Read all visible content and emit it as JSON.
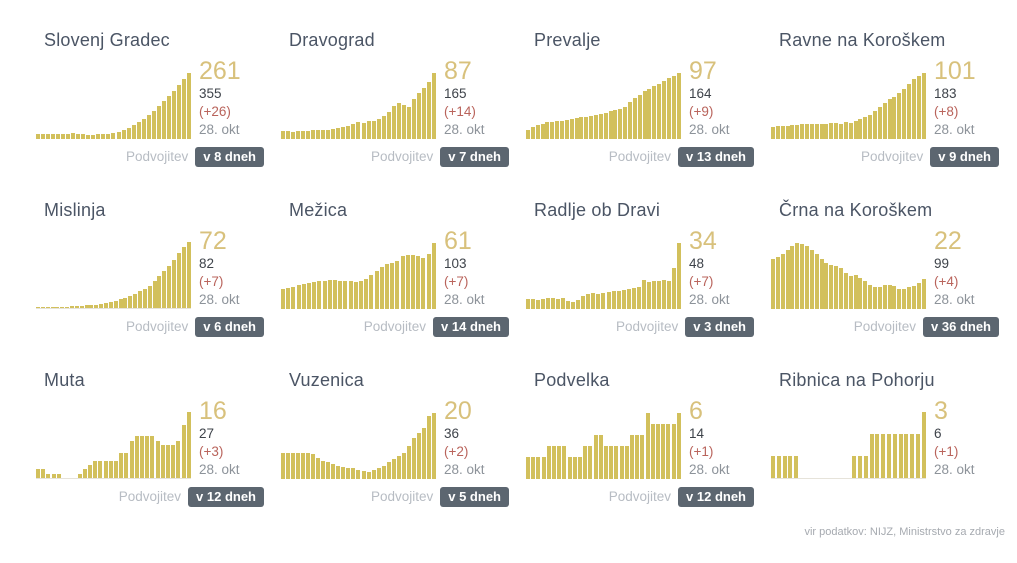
{
  "labels": {
    "doubling": "Podvojitev"
  },
  "footer": {
    "source": "vir podatkov: NIJZ, Ministrstvo za zdravje"
  },
  "colors": {
    "bar": "#d2c05c",
    "headline": "#d8c17c",
    "delta": "#b9635b",
    "badge_bg": "#5c6670",
    "title": "#4b5565"
  },
  "layout_hints": {
    "sparkline_small_multiples": true,
    "axes_hidden": true,
    "grid": false,
    "columns": 4,
    "rows": 3
  },
  "chart_data": [
    {
      "type": "bar",
      "title": "Slovenj Gradec",
      "headline_value": "261",
      "total": "355",
      "delta": "(+26)",
      "date": "28. okt",
      "doubling_time": "v 8 dneh",
      "values_pct_of_max": [
        8,
        8,
        7,
        8,
        8,
        8,
        7,
        9,
        8,
        7,
        6,
        6,
        7,
        7,
        8,
        9,
        11,
        14,
        17,
        21,
        26,
        31,
        37,
        43,
        50,
        57,
        65,
        73,
        82,
        91,
        100
      ]
    },
    {
      "type": "bar",
      "title": "Dravograd",
      "headline_value": "87",
      "total": "165",
      "delta": "(+14)",
      "date": "28. okt",
      "doubling_time": "v 7 dneh",
      "values_pct_of_max": [
        12,
        12,
        11,
        12,
        12,
        12,
        13,
        14,
        13,
        14,
        15,
        17,
        18,
        20,
        22,
        25,
        24,
        28,
        27,
        31,
        35,
        41,
        50,
        54,
        51,
        49,
        60,
        70,
        77,
        87,
        100
      ]
    },
    {
      "type": "bar",
      "title": "Prevalje",
      "headline_value": "97",
      "total": "164",
      "delta": "(+9)",
      "date": "28. okt",
      "doubling_time": "v 13 dneh",
      "values_pct_of_max": [
        14,
        18,
        21,
        23,
        25,
        26,
        27,
        28,
        29,
        31,
        32,
        33,
        34,
        35,
        37,
        38,
        40,
        42,
        44,
        46,
        49,
        56,
        62,
        67,
        72,
        76,
        80,
        84,
        88,
        92,
        96,
        100
      ]
    },
    {
      "type": "bar",
      "title": "Ravne na Koroškem",
      "headline_value": "101",
      "total": "183",
      "delta": "(+8)",
      "date": "28. okt",
      "doubling_time": "v 9 dneh",
      "values_pct_of_max": [
        18,
        19,
        20,
        20,
        21,
        21,
        22,
        22,
        22,
        23,
        23,
        23,
        24,
        24,
        23,
        26,
        24,
        28,
        30,
        33,
        37,
        42,
        49,
        55,
        60,
        63,
        69,
        76,
        83,
        91,
        96,
        100
      ]
    },
    {
      "type": "bar",
      "title": "Mislinja",
      "headline_value": "72",
      "total": "82",
      "delta": "(+7)",
      "date": "28. okt",
      "doubling_time": "v 6 dneh",
      "values_pct_of_max": [
        1,
        1,
        1,
        2,
        2,
        2,
        2,
        3,
        3,
        3,
        4,
        4,
        5,
        6,
        7,
        9,
        11,
        13,
        15,
        18,
        21,
        25,
        29,
        34,
        41,
        48,
        56,
        64,
        73,
        83,
        92,
        100
      ]
    },
    {
      "type": "bar",
      "title": "Mežica",
      "headline_value": "61",
      "total": "103",
      "delta": "(+7)",
      "date": "28. okt",
      "doubling_time": "v 14 dneh",
      "values_pct_of_max": [
        30,
        32,
        34,
        36,
        38,
        40,
        41,
        42,
        43,
        44,
        44,
        43,
        42,
        42,
        41,
        43,
        46,
        52,
        58,
        64,
        68,
        70,
        72,
        80,
        82,
        82,
        80,
        78,
        84,
        100
      ]
    },
    {
      "type": "bar",
      "title": "Radlje ob Dravi",
      "headline_value": "34",
      "total": "48",
      "delta": "(+7)",
      "date": "28. okt",
      "doubling_time": "v 3 dneh",
      "values_pct_of_max": [
        15,
        15,
        14,
        15,
        16,
        16,
        15,
        16,
        12,
        10,
        14,
        19,
        22,
        24,
        22,
        24,
        25,
        27,
        28,
        29,
        30,
        32,
        34,
        44,
        41,
        42,
        42,
        44,
        42,
        62,
        100
      ]
    },
    {
      "type": "bar",
      "title": "Črna na Koroškem",
      "headline_value": "22",
      "total": "99",
      "delta": "(+4)",
      "date": "28. okt",
      "doubling_time": "v 36 dneh",
      "values_pct_of_max": [
        75,
        79,
        84,
        90,
        95,
        100,
        99,
        96,
        90,
        83,
        76,
        70,
        66,
        65,
        62,
        55,
        50,
        52,
        47,
        42,
        36,
        34,
        33,
        36,
        37,
        35,
        31,
        30,
        33,
        35,
        40,
        46
      ]
    },
    {
      "type": "bar",
      "title": "Muta",
      "headline_value": "16",
      "total": "27",
      "delta": "(+3)",
      "date": "28. okt",
      "doubling_time": "v 12 dneh",
      "values_pct_of_max": [
        13,
        13,
        6,
        6,
        6,
        0,
        0,
        0,
        6,
        13,
        19,
        25,
        25,
        25,
        25,
        25,
        38,
        38,
        56,
        63,
        63,
        63,
        63,
        56,
        50,
        50,
        50,
        56,
        81,
        100
      ]
    },
    {
      "type": "bar",
      "title": "Vuzenica",
      "headline_value": "20",
      "total": "36",
      "delta": "(+2)",
      "date": "28. okt",
      "doubling_time": "v 5 dneh",
      "values_pct_of_max": [
        40,
        40,
        40,
        40,
        40,
        40,
        38,
        32,
        28,
        25,
        22,
        20,
        18,
        16,
        16,
        14,
        12,
        10,
        14,
        16,
        20,
        25,
        30,
        35,
        40,
        50,
        62,
        70,
        78,
        95,
        100
      ]
    },
    {
      "type": "bar",
      "title": "Podvelka",
      "headline_value": "6",
      "total": "14",
      "delta": "(+1)",
      "date": "28. okt",
      "doubling_time": "v 12 dneh",
      "values_pct_of_max": [
        33,
        33,
        33,
        33,
        50,
        50,
        50,
        50,
        33,
        33,
        33,
        50,
        50,
        67,
        67,
        50,
        50,
        50,
        50,
        50,
        67,
        67,
        67,
        100,
        83,
        83,
        83,
        83,
        83,
        100
      ]
    },
    {
      "type": "bar",
      "title": "Ribnica na Pohorju",
      "headline_value": "3",
      "total": "6",
      "delta": "(+1)",
      "date": "28. okt",
      "doubling_time": "",
      "values_pct_of_max": [
        33,
        33,
        33,
        33,
        33,
        0,
        0,
        0,
        0,
        0,
        0,
        0,
        0,
        0,
        33,
        33,
        33,
        67,
        67,
        67,
        67,
        67,
        67,
        67,
        67,
        67,
        100
      ]
    }
  ]
}
